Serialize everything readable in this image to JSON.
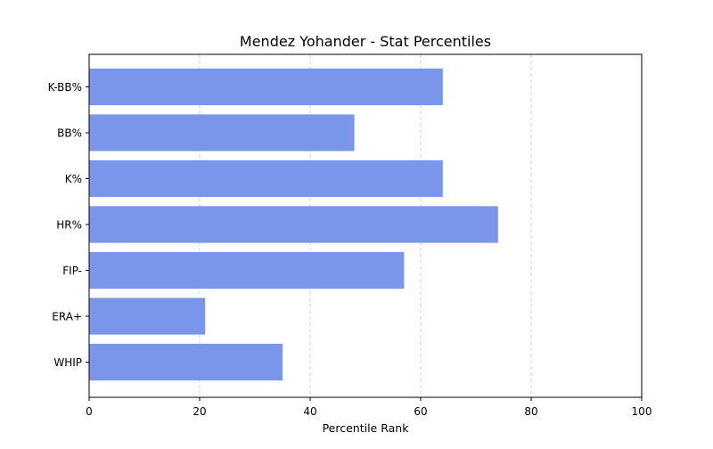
{
  "chart_data": {
    "type": "bar",
    "orientation": "horizontal",
    "title": "Mendez Yohander - Stat Percentiles",
    "xlabel": "Percentile Rank",
    "ylabel": "",
    "categories": [
      "WHIP",
      "ERA+",
      "FIP-",
      "HR%",
      "K%",
      "BB%",
      "K-BB%"
    ],
    "values": [
      35,
      21,
      57,
      74,
      64,
      48,
      64
    ],
    "xlim": [
      0,
      100
    ],
    "xticks": [
      "0",
      "20",
      "40",
      "60",
      "80",
      "100"
    ],
    "grid": "x-axis dashed",
    "legend": "none",
    "colors": {
      "bar": "#7a96ea",
      "grid": "#c8c8c8",
      "axis": "#000000"
    }
  }
}
